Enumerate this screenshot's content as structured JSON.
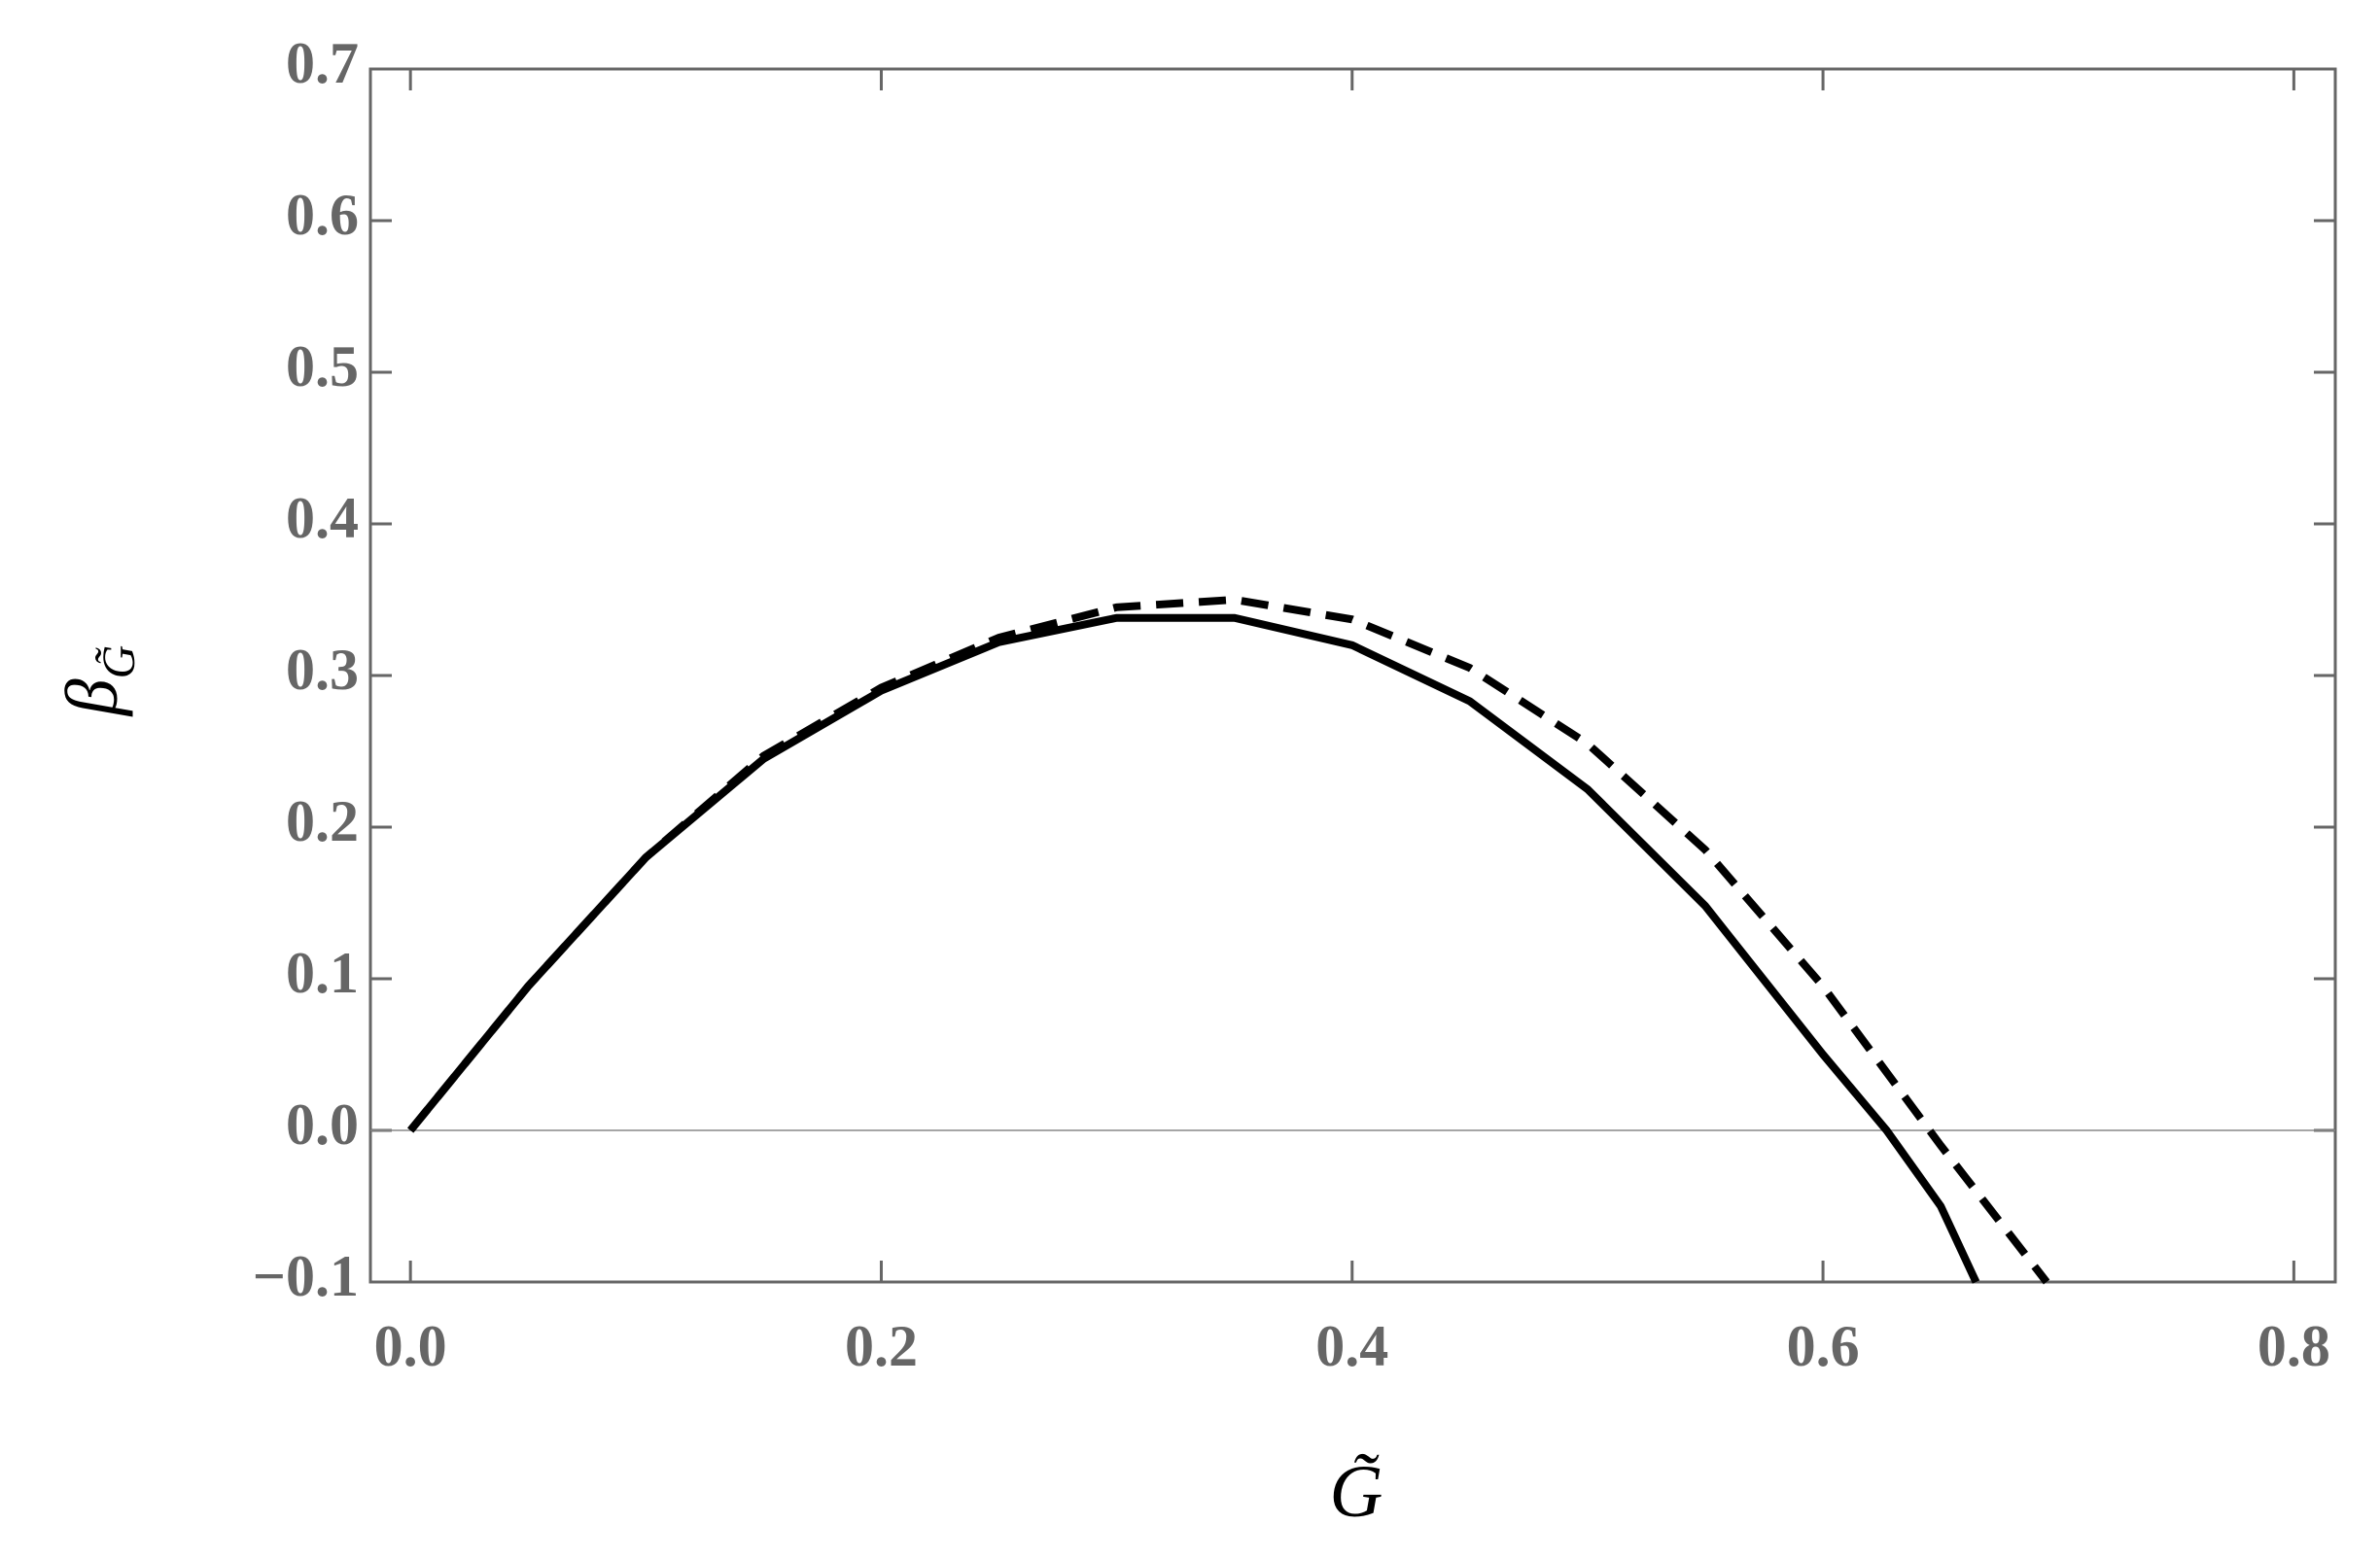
{
  "chart_data": {
    "type": "line",
    "xlabel": "G̃",
    "ylabel": "β",
    "ylabel_subscript": "G̃",
    "xlim": [
      -0.017,
      0.8176
    ],
    "ylim": [
      -0.1,
      0.7
    ],
    "xticks": [
      {
        "value": 0,
        "label": "0.0"
      },
      0.2,
      0.4,
      0.6,
      0.8
    ],
    "yticks": [
      {
        "value": -0.1,
        "label": "−0.1"
      },
      {
        "value": 0,
        "label": "0.0"
      },
      0.1,
      0.2,
      0.3,
      0.4,
      0.5,
      0.6,
      0.7
    ],
    "zero_line": true,
    "series": [
      {
        "color": "#000000",
        "dashed": false,
        "x": [
          0,
          0.05,
          0.1,
          0.15,
          0.2,
          0.25,
          0.3,
          0.35,
          0.4,
          0.45,
          0.5,
          0.55,
          0.6,
          0.627,
          0.65,
          0.665
        ],
        "values": [
          0,
          0.095,
          0.18,
          0.245,
          0.29,
          0.322,
          0.338,
          0.338,
          0.32,
          0.283,
          0.225,
          0.148,
          0.05,
          0,
          -0.05,
          -0.1
        ]
      },
      {
        "color": "#000000",
        "dashed": true,
        "x": [
          0,
          0.05,
          0.1,
          0.15,
          0.2,
          0.25,
          0.3,
          0.35,
          0.4,
          0.45,
          0.5,
          0.55,
          0.6,
          0.65,
          0.66,
          0.695
        ],
        "values": [
          0,
          0.095,
          0.18,
          0.247,
          0.292,
          0.325,
          0.345,
          0.35,
          0.337,
          0.305,
          0.255,
          0.185,
          0.095,
          -0.01,
          -0.03,
          -0.1
        ]
      }
    ]
  }
}
